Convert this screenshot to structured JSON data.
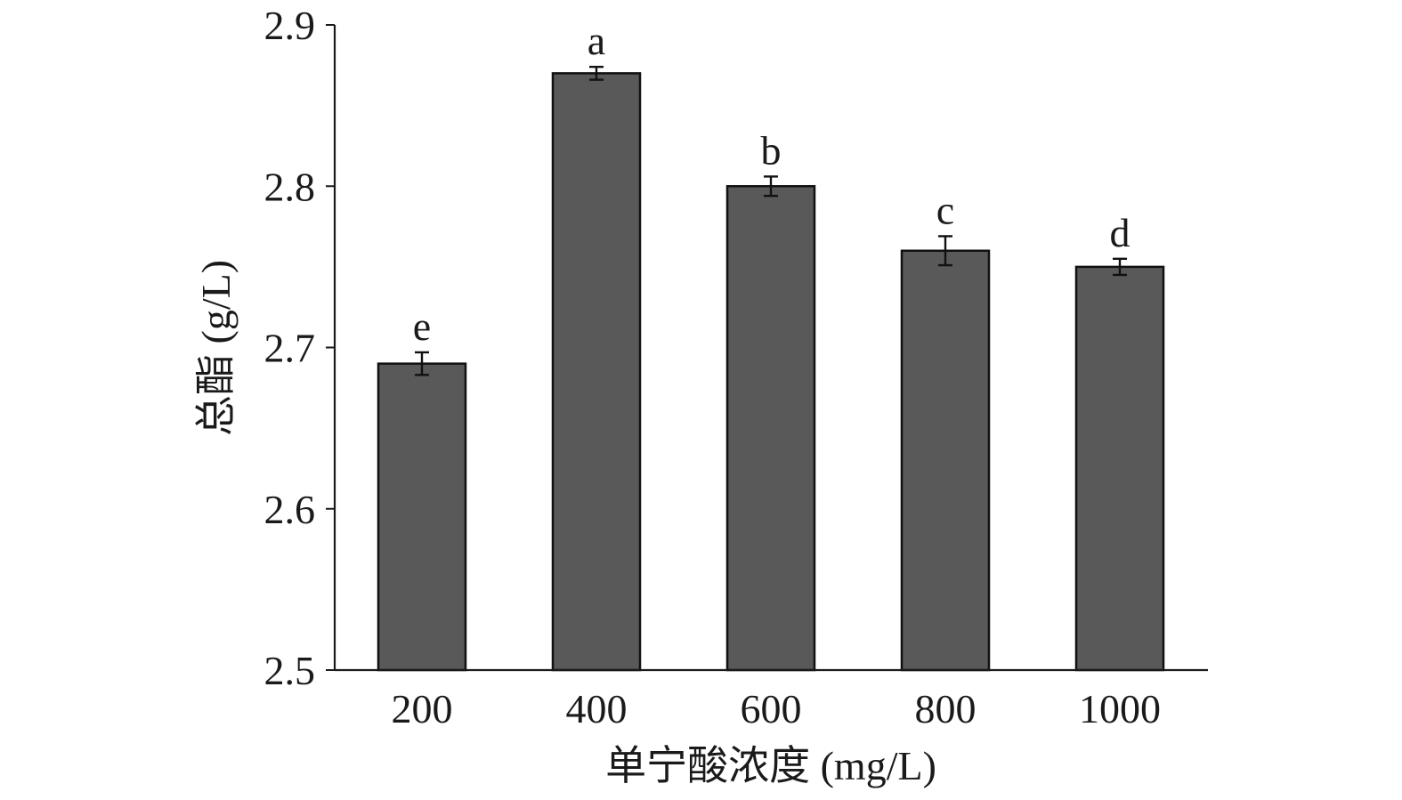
{
  "chart_data": {
    "type": "bar",
    "title": "",
    "xlabel": "单宁酸浓度 (mg/L)",
    "ylabel": "总酯 (g/L)",
    "categories": [
      "200",
      "400",
      "600",
      "800",
      "1000"
    ],
    "values": [
      2.69,
      2.87,
      2.8,
      2.76,
      2.75
    ],
    "errors": [
      0.007,
      0.004,
      0.006,
      0.009,
      0.005
    ],
    "significance_labels": [
      "e",
      "a",
      "b",
      "c",
      "d"
    ],
    "ylim": [
      2.5,
      2.9
    ],
    "yticks": [
      "2.5",
      "2.6",
      "2.7",
      "2.8",
      "2.9"
    ],
    "grid": false,
    "bar_color": "#595959"
  }
}
